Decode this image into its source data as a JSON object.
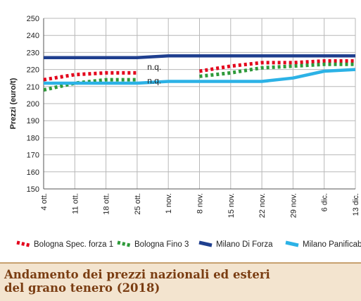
{
  "chart_data": {
    "type": "line",
    "ylabel": "Prezzi (euro/t)",
    "xlabel": "",
    "ylim": [
      150,
      250
    ],
    "y_ticks": [
      150,
      160,
      170,
      180,
      190,
      200,
      210,
      220,
      230,
      240,
      250
    ],
    "categories": [
      "4 ott.",
      "11 ott.",
      "18 ott.",
      "25 ott.",
      "1 nov.",
      "8 nov.",
      "15 nov.",
      "22 nov.",
      "29 nov.",
      "6 dic.",
      "13 dic."
    ],
    "grid": true,
    "legend_position": "bottom",
    "series": [
      {
        "name": "Bologna Spec. forza 1",
        "color": "#e3001b",
        "style": "dotted",
        "values": [
          214,
          217,
          218,
          218,
          null,
          219,
          222,
          224,
          224,
          225,
          225
        ]
      },
      {
        "name": "Bologna Fino 3",
        "color": "#2e9a3a",
        "style": "dotted",
        "values": [
          208,
          212,
          214,
          214,
          null,
          216,
          218,
          221,
          222,
          223,
          223
        ]
      },
      {
        "name": "Milano Di Forza",
        "color": "#1f3f8f",
        "style": "solid",
        "values": [
          227,
          227,
          227,
          227,
          228,
          228,
          228,
          228,
          228,
          228,
          228
        ]
      },
      {
        "name": "Milano Panificabile",
        "color": "#2cb2e6",
        "style": "solid",
        "values": [
          212,
          212,
          212,
          212,
          213,
          213,
          213,
          213,
          215,
          219,
          220
        ]
      }
    ],
    "annotations": [
      {
        "text": "n.q.",
        "x": "1 nov.",
        "y": 221
      },
      {
        "text": "n.q.",
        "x": "1 nov.",
        "y": 213
      }
    ]
  },
  "caption": {
    "line1": "Andamento dei prezzi nazionali ed esteri",
    "line2": "del grano tenero (2018)"
  }
}
